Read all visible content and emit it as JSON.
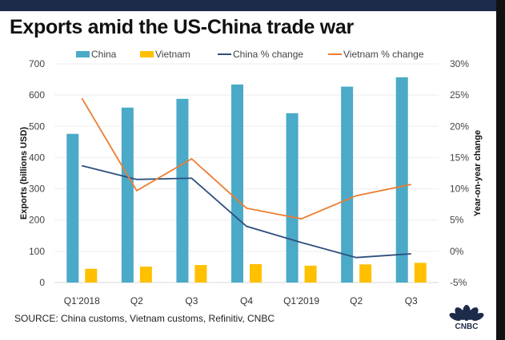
{
  "title": "Exports amid the US-China trade war",
  "source": "SOURCE: China customs, Vietnam customs, Refinitiv, CNBC",
  "logo_text": "CNBC",
  "chart_data": {
    "type": "bar+line",
    "categories": [
      "Q1'2018",
      "Q2",
      "Q3",
      "Q4",
      "Q1'2019",
      "Q2",
      "Q3"
    ],
    "ylabel": "Exports (billions USD)",
    "y2label": "Year-on-year change",
    "ylim": [
      0,
      700
    ],
    "y2lim": [
      -5,
      30
    ],
    "yticks": [
      "0",
      "100",
      "200",
      "300",
      "400",
      "500",
      "600",
      "700"
    ],
    "y2ticks": [
      "-5%",
      "0%",
      "5%",
      "10%",
      "15%",
      "20%",
      "25%",
      "30%"
    ],
    "grid": true,
    "legend_placement": "top",
    "series": [
      {
        "name": "China",
        "kind": "bar",
        "axis": "left",
        "color": "#4aaac8",
        "values": [
          476,
          560,
          588,
          634,
          542,
          627,
          657
        ]
      },
      {
        "name": "Vietnam",
        "kind": "bar",
        "axis": "left",
        "color": "#ffc000",
        "values": [
          44,
          51,
          56,
          59,
          54,
          58,
          63
        ]
      },
      {
        "name": "China % change",
        "kind": "line",
        "axis": "right",
        "color": "#2e4f7e",
        "values": [
          13.7,
          11.5,
          11.7,
          4.0,
          1.4,
          -1.0,
          -0.4
        ]
      },
      {
        "name": "Vietnam % change",
        "kind": "line",
        "axis": "right",
        "color": "#ed7d31",
        "values": [
          24.5,
          9.7,
          14.8,
          6.9,
          5.2,
          8.9,
          10.7
        ]
      }
    ]
  }
}
